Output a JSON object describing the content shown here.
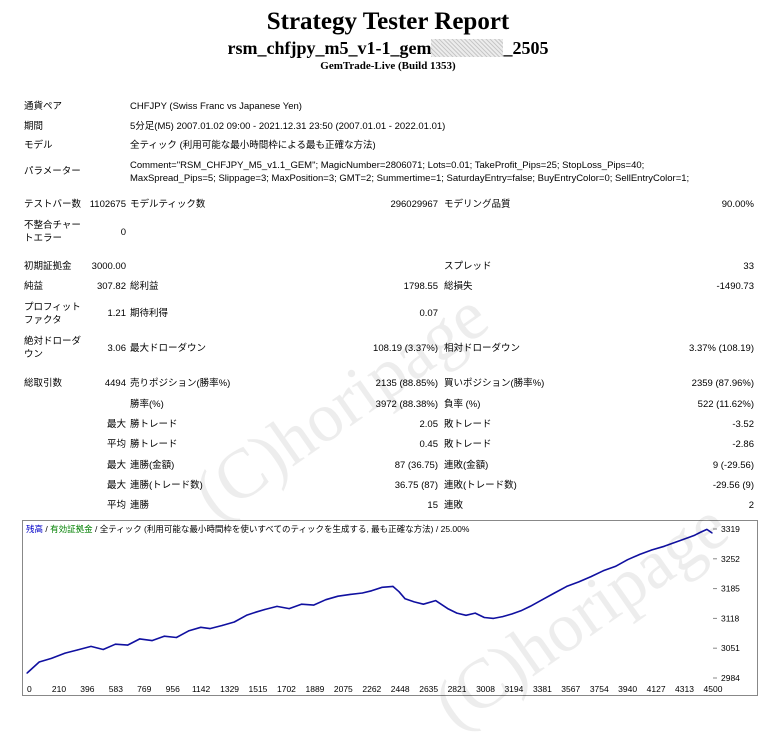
{
  "header": {
    "title": "Strategy Tester Report",
    "name_prefix": "rsm_chfjpy_m5_v1-1_gem",
    "name_suffix": "_2505",
    "build": "GemTrade-Live (Build 1353)"
  },
  "info": {
    "pair_label": "通貨ペア",
    "pair_value": "CHFJPY (Swiss Franc vs Japanese Yen)",
    "period_label": "期間",
    "period_value": "5分足(M5) 2007.01.02 09:00 - 2021.12.31 23:50 (2007.01.01 - 2022.01.01)",
    "model_label": "モデル",
    "model_value": "全ティック (利用可能な最小時間枠による最も正確な方法)",
    "params_label": "パラメーター",
    "params_line1": "Comment=\"RSM_CHFJPY_M5_v1.1_GEM\"; MagicNumber=2806071; Lots=0.01; TakeProfit_Pips=25; StopLoss_Pips=40;",
    "params_line2": "MaxSpread_Pips=5; Slippage=3; MaxPosition=3; GMT=2; Summertime=1; SaturdayEntry=false; BuyEntryColor=0; SellEntryColor=1;"
  },
  "stats": {
    "bars_label": "テストバー数",
    "bars_value": "1102675",
    "ticks_label": "モデルティック数",
    "ticks_value": "296029967",
    "quality_label": "モデリング品質",
    "quality_value": "90.00%",
    "mismatch_label_1": "不整合チャー",
    "mismatch_label_2": "トエラー",
    "mismatch_value": "0",
    "deposit_label": "初期証拠金",
    "deposit_value": "3000.00",
    "spread_label": "スプレッド",
    "spread_value": "33",
    "net_label": "純益",
    "net_value": "307.82",
    "gross_profit_label": "総利益",
    "gross_profit_value": "1798.55",
    "gross_loss_label": "総損失",
    "gross_loss_value": "-1490.73",
    "pf_label_1": "プロフィット",
    "pf_label_2": "ファクタ",
    "pf_value": "1.21",
    "expected_label": "期待利得",
    "expected_value": "0.07",
    "abs_dd_label_1": "絶対ドローダ",
    "abs_dd_label_2": "ウン",
    "abs_dd_value": "3.06",
    "max_dd_label": "最大ドローダウン",
    "max_dd_value": "108.19 (3.37%)",
    "rel_dd_label": "相対ドローダウン",
    "rel_dd_value": "3.37% (108.19)",
    "trades_label": "総取引数",
    "trades_value": "4494",
    "short_label": "売りポジション(勝率%)",
    "short_value": "2135 (88.85%)",
    "long_label": "買いポジション(勝率%)",
    "long_value": "2359 (87.96%)",
    "winrate_label": "勝率(%)",
    "winrate_value": "3972 (88.38%)",
    "lossrate_label": "負率 (%)",
    "lossrate_value": "522 (11.62%)",
    "max_prefix": "最大",
    "avg_prefix": "平均",
    "max_win_label": "勝トレード",
    "max_win_value": "2.05",
    "max_loss_label": "敗トレード",
    "max_loss_value": "-3.52",
    "avg_win_label": "勝トレード",
    "avg_win_value": "0.45",
    "avg_loss_label": "敗トレード",
    "avg_loss_value": "-2.86",
    "max_cons_win_amt_label": "連勝(金額)",
    "max_cons_win_amt_value": "87 (36.75)",
    "max_cons_loss_amt_label": "連敗(金額)",
    "max_cons_loss_amt_value": "9 (-29.56)",
    "max_cons_win_tr_label": "連勝(トレード数)",
    "max_cons_win_tr_value": "36.75 (87)",
    "max_cons_loss_tr_label": "連敗(トレード数)",
    "max_cons_loss_tr_value": "-29.56 (9)",
    "avg_cons_win_label": "連勝",
    "avg_cons_win_value": "15",
    "avg_cons_loss_label": "連敗",
    "avg_cons_loss_value": "2"
  },
  "watermark": "(C)horipage",
  "chart_legend": {
    "balance": "残高",
    "sep": " / ",
    "lot": "有効証拠金",
    "rest": " / 全ティック (利用可能な最小時間枠を使いすべてのティックを生成する, 最も正確な方法) / 25.00%"
  },
  "chart_data": {
    "type": "line",
    "x_ticks": [
      "0",
      "210",
      "396",
      "583",
      "769",
      "956",
      "1142",
      "1329",
      "1515",
      "1702",
      "1889",
      "2075",
      "2262",
      "2448",
      "2635",
      "2821",
      "3008",
      "3194",
      "3381",
      "3567",
      "3754",
      "3940",
      "4127",
      "4313",
      "4500"
    ],
    "y_ticks": [
      "3319",
      "3252",
      "3185",
      "3118",
      "3051",
      "2984"
    ],
    "xlim": [
      0,
      4500
    ],
    "ylim": [
      2984,
      3319
    ],
    "colors": {
      "line": "#1010a0"
    },
    "series": [
      {
        "x": [
          0,
          80,
          160,
          250,
          330,
          420,
          500,
          580,
          660,
          740,
          820,
          900,
          980,
          1060,
          1140,
          1200,
          1280,
          1360,
          1440,
          1500,
          1560,
          1640,
          1720,
          1800,
          1880,
          1960,
          2040,
          2120,
          2200,
          2260,
          2330,
          2400,
          2440,
          2480,
          2540,
          2600,
          2680,
          2760,
          2820,
          2880,
          2940,
          3000,
          3060,
          3120,
          3180,
          3240,
          3300,
          3380,
          3460,
          3540,
          3620,
          3700,
          3780,
          3860,
          3940,
          4020,
          4100,
          4180,
          4260,
          4340,
          4380,
          4420,
          4460,
          4494
        ],
        "y": [
          2995,
          3020,
          3028,
          3040,
          3047,
          3055,
          3048,
          3060,
          3058,
          3072,
          3068,
          3078,
          3075,
          3090,
          3098,
          3095,
          3102,
          3110,
          3125,
          3132,
          3138,
          3145,
          3140,
          3150,
          3148,
          3160,
          3168,
          3172,
          3175,
          3180,
          3188,
          3190,
          3178,
          3162,
          3155,
          3150,
          3158,
          3140,
          3130,
          3125,
          3130,
          3120,
          3118,
          3122,
          3128,
          3135,
          3145,
          3160,
          3175,
          3190,
          3200,
          3212,
          3225,
          3235,
          3250,
          3262,
          3272,
          3280,
          3290,
          3300,
          3305,
          3312,
          3318,
          3310
        ]
      }
    ]
  }
}
